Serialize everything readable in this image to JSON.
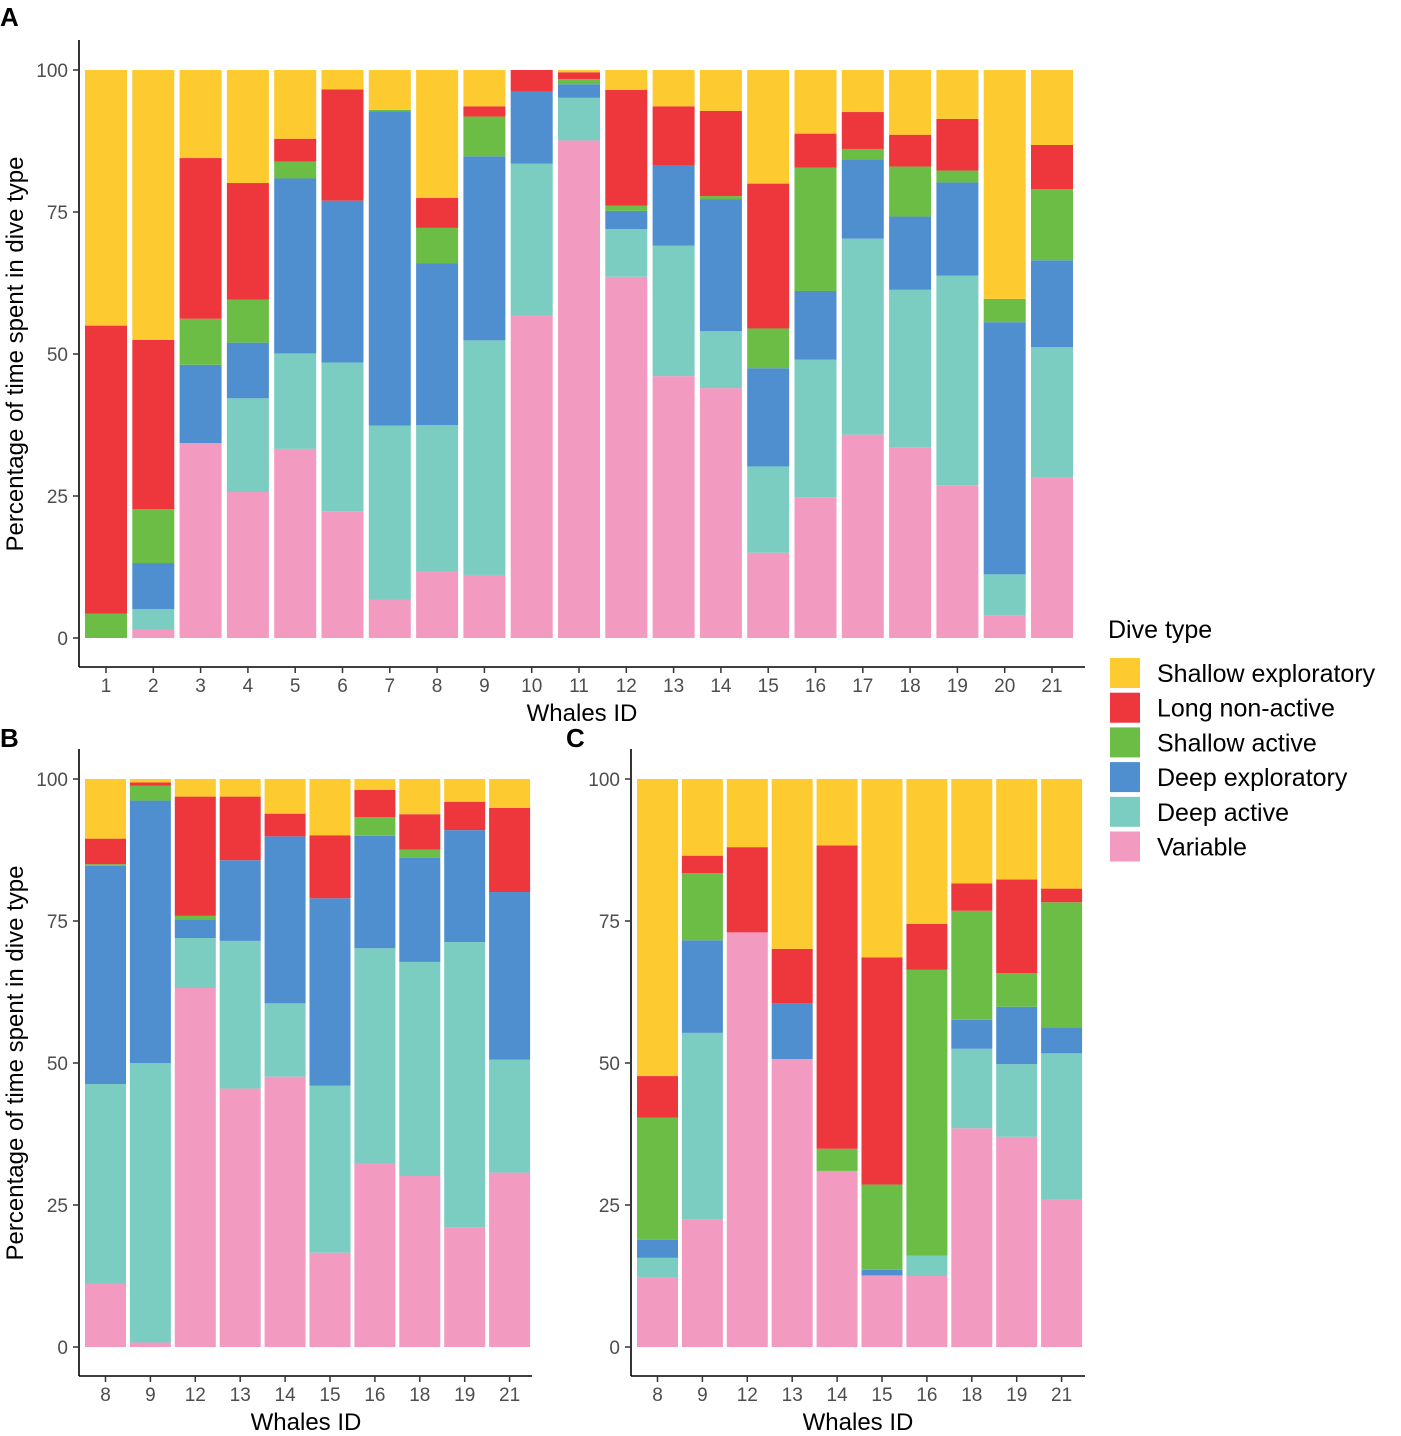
{
  "colors": {
    "Shallow exploratory": "#FDCA2F",
    "Long non-active": "#EE363D",
    "Shallow active": "#6BBD45",
    "Deep exploratory": "#508FCF",
    "Deep active": "#7BCDC2",
    "Variable": "#F39AC1"
  },
  "legend": {
    "title": "Dive type",
    "items": [
      "Shallow exploratory",
      "Long non-active",
      "Shallow active",
      "Deep exploratory",
      "Deep active",
      "Variable"
    ]
  },
  "chart_data": [
    {
      "panel": "A",
      "type": "bar",
      "stacked": true,
      "xlabel": "Whales ID",
      "ylabel": "Percentage of time spent in dive type",
      "ylim": [
        0,
        100
      ],
      "yticks": [
        0,
        25,
        50,
        75,
        100
      ],
      "categories": [
        "1",
        "2",
        "3",
        "4",
        "5",
        "6",
        "7",
        "8",
        "9",
        "10",
        "11",
        "12",
        "13",
        "14",
        "15",
        "16",
        "17",
        "18",
        "19",
        "20",
        "21"
      ],
      "series": [
        {
          "name": "Variable",
          "values": [
            0,
            1.5,
            34.3,
            25.7,
            33.3,
            22.3,
            6.7,
            11.7,
            11.1,
            56.7,
            87.6,
            63.6,
            46.1,
            44,
            15,
            24.8,
            35.8,
            33.5,
            26.9,
            3.9,
            28.2
          ]
        },
        {
          "name": "Deep active",
          "values": [
            0,
            3.6,
            0,
            16.5,
            16.8,
            26.2,
            30.7,
            25.8,
            41.3,
            26.8,
            7.5,
            8.4,
            23,
            10,
            15.2,
            24.2,
            34.5,
            27.8,
            36.9,
            7.3,
            23
          ]
        },
        {
          "name": "Deep exploratory",
          "values": [
            0,
            8.1,
            13.8,
            9.8,
            30.8,
            28.5,
            55.3,
            28.5,
            32.4,
            12.7,
            2.4,
            3.2,
            14.1,
            23.2,
            17.3,
            12.1,
            14,
            12.9,
            16.4,
            44.4,
            15.3
          ]
        },
        {
          "name": "Shallow active",
          "values": [
            4.3,
            9.5,
            8.1,
            7.6,
            3,
            0,
            0.3,
            6.2,
            7,
            0,
            0.9,
            0.9,
            0,
            0.6,
            7,
            21.7,
            1.8,
            8.8,
            2.1,
            4.1,
            12.5
          ]
        },
        {
          "name": "Long non-active",
          "values": [
            50.7,
            29.8,
            28.3,
            20.5,
            4,
            19.6,
            0,
            5.3,
            1.8,
            3.8,
            1.2,
            20.4,
            10.4,
            15,
            25.5,
            6,
            6.5,
            5.6,
            9.1,
            0,
            7.8
          ]
        },
        {
          "name": "Shallow exploratory",
          "values": [
            45,
            47.5,
            15.5,
            19.9,
            12.1,
            3.4,
            7,
            22.5,
            6.4,
            0,
            0.4,
            3.5,
            6.4,
            7.2,
            20,
            11.2,
            7.4,
            11.4,
            8.6,
            40.3,
            13.2
          ]
        }
      ]
    },
    {
      "panel": "B",
      "type": "bar",
      "stacked": true,
      "xlabel": "Whales ID",
      "ylabel": "Percentage of time spent in dive type",
      "ylim": [
        0,
        100
      ],
      "yticks": [
        0,
        25,
        50,
        75,
        100
      ],
      "categories": [
        "8",
        "9",
        "12",
        "13",
        "14",
        "15",
        "16",
        "18",
        "19",
        "21"
      ],
      "series": [
        {
          "name": "Variable",
          "values": [
            11.1,
            0.8,
            63.2,
            45.5,
            47.6,
            16.6,
            32.3,
            30.1,
            21.1,
            30.7
          ]
        },
        {
          "name": "Deep active",
          "values": [
            35.2,
            49.2,
            8.8,
            26,
            12.9,
            29.4,
            37.9,
            37.7,
            50.2,
            19.9
          ]
        },
        {
          "name": "Deep exploratory",
          "values": [
            38.4,
            46.2,
            3.3,
            14.2,
            29.4,
            33,
            19.8,
            18.3,
            19.7,
            29.5
          ]
        },
        {
          "name": "Shallow active",
          "values": [
            0.3,
            2.6,
            0.6,
            0,
            0,
            0,
            3.3,
            1.5,
            0,
            0
          ]
        },
        {
          "name": "Long non-active",
          "values": [
            4.5,
            0.6,
            21,
            11.2,
            4,
            11.1,
            4.8,
            6.2,
            5,
            14.8
          ]
        },
        {
          "name": "Shallow exploratory",
          "values": [
            10.5,
            0.6,
            3.1,
            3.1,
            6.1,
            9.9,
            1.9,
            6.2,
            4,
            5.1
          ]
        }
      ]
    },
    {
      "panel": "C",
      "type": "bar",
      "stacked": true,
      "xlabel": "Whales ID",
      "ylabel": "",
      "ylim": [
        0,
        100
      ],
      "yticks": [
        0,
        25,
        50,
        75,
        100
      ],
      "categories": [
        "8",
        "9",
        "12",
        "13",
        "14",
        "15",
        "16",
        "18",
        "19",
        "21"
      ],
      "series": [
        {
          "name": "Variable",
          "values": [
            12.2,
            22.4,
            73,
            50.7,
            31,
            12.6,
            12.5,
            38.5,
            37,
            25.9
          ]
        },
        {
          "name": "Deep active",
          "values": [
            3.5,
            32.9,
            0,
            0,
            0,
            0,
            3.6,
            14,
            12.8,
            25.8
          ]
        },
        {
          "name": "Deep exploratory",
          "values": [
            3.2,
            16.3,
            0,
            9.8,
            0,
            1,
            0,
            5.1,
            10.1,
            4.6
          ]
        },
        {
          "name": "Shallow active",
          "values": [
            21.5,
            11.8,
            0,
            0,
            3.9,
            15,
            50.3,
            19.2,
            5.9,
            22
          ]
        },
        {
          "name": "Long non-active",
          "values": [
            7.3,
            3.1,
            15,
            9.6,
            53.4,
            40,
            8.1,
            4.8,
            16.5,
            2.4
          ]
        },
        {
          "name": "Shallow exploratory",
          "values": [
            52.3,
            13.5,
            12,
            29.9,
            11.7,
            31.4,
            25.5,
            18.4,
            17.7,
            19.3
          ]
        }
      ]
    }
  ]
}
